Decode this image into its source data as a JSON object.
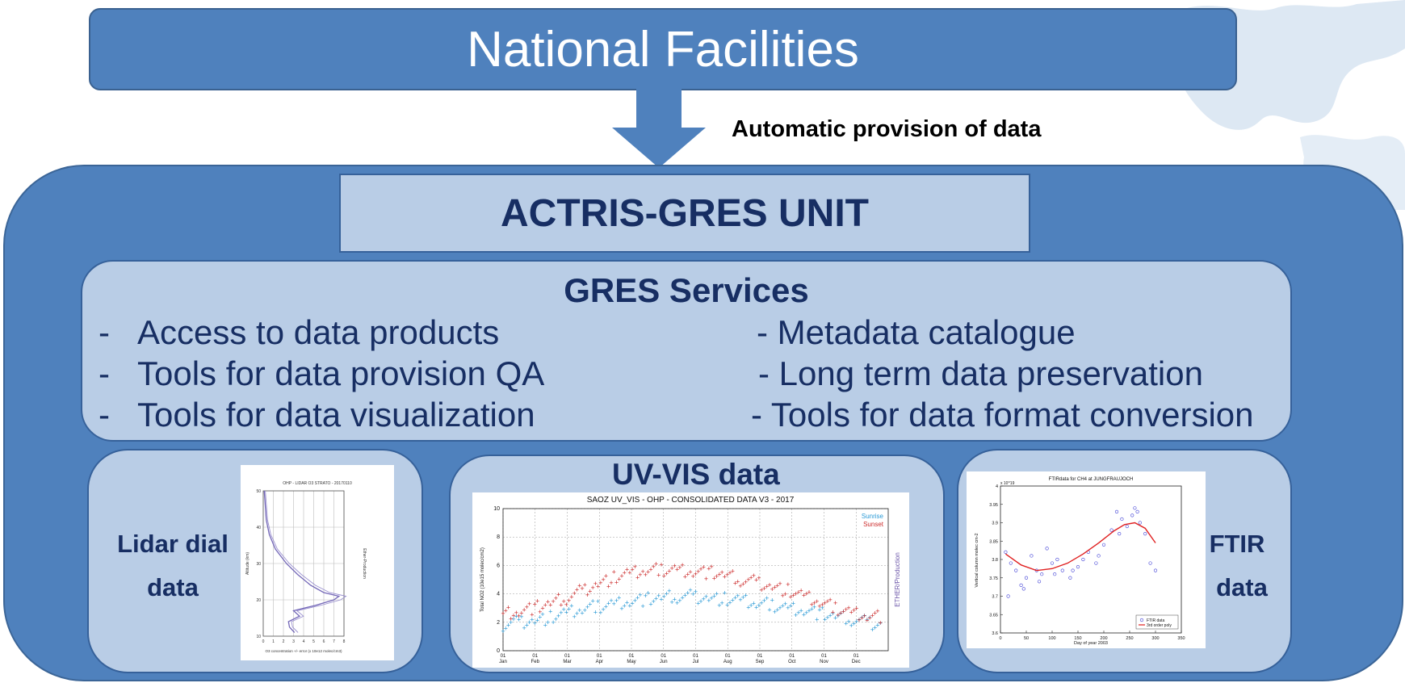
{
  "header": {
    "title": "National Facilities"
  },
  "flow": {
    "arrow_label": "Automatic provision of data"
  },
  "unit": {
    "title": "ACTRIS-GRES UNIT"
  },
  "services": {
    "title": "GRES Services",
    "left": [
      "Access to data products",
      "Tools for data provision QA",
      "Tools for data visualization"
    ],
    "right": [
      "- Metadata catalogue",
      "- Long term data preservation",
      "- Tools for data format conversion"
    ]
  },
  "panels": {
    "lidar": {
      "label_line1": "Lidar dial",
      "label_line2": "data"
    },
    "uvvis": {
      "title": "UV-VIS data"
    },
    "ftir": {
      "label_line1": "FTIR",
      "label_line2": "data"
    }
  },
  "colors": {
    "primary_blue": "#4f81bd",
    "light_blue": "#b9cde6",
    "dark_navy": "#172e63",
    "sunrise": "#2a9ad6",
    "sunset": "#cc2b2b"
  },
  "chart_data": [
    {
      "type": "line",
      "title": "OHP - LIDAR O3 STRATO - 20170110",
      "xlabel": "O3 concentration +/- error (x 10e12 molec/cm3)",
      "ylabel": "Altitude (km)",
      "side_label": "Ether-Production",
      "xlim": [
        0,
        8
      ],
      "ylim": [
        10,
        50
      ],
      "x_ticks": [
        "0",
        "1",
        "2",
        "3",
        "4",
        "5",
        "6",
        "7",
        "8"
      ],
      "y_ticks": [
        "10",
        "20",
        "30",
        "40",
        "50"
      ],
      "series": [
        {
          "x": [
            0.1,
            0.2,
            0.3,
            0.6,
            1.2,
            2.3,
            3.4,
            4.7,
            6.0,
            7.5,
            7.0,
            5.2,
            3.0,
            3.6,
            2.5,
            2.6,
            3.1
          ],
          "y": [
            50,
            46,
            42,
            38,
            34,
            30,
            27,
            24,
            22,
            21,
            20,
            18.5,
            17,
            15.5,
            14,
            12.5,
            11
          ]
        }
      ]
    },
    {
      "type": "scatter",
      "title": "SAOZ UV_VIS - OHP - CONSOLIDATED DATA V3 - 2017",
      "ylabel": "Total NO2 (10e15 molec/cm2)",
      "side_label": "ETHER/Production",
      "ylim": [
        0,
        10
      ],
      "y_ticks": [
        "0",
        "2",
        "4",
        "6",
        "8",
        "10"
      ],
      "x_ticks": [
        "01\nJan",
        "01\nFeb",
        "01\nMar",
        "01\nApr",
        "01\nMay",
        "01\nJun",
        "01\nJul",
        "01\nAug",
        "01\nSep",
        "01\nOct",
        "01\nNov",
        "01\nDec"
      ],
      "series": [
        {
          "name": "Sunrise",
          "color": "#2a9ad6",
          "x": [
            0,
            15,
            30,
            45,
            60,
            75,
            90,
            105,
            120,
            135,
            150,
            165,
            180,
            195,
            210,
            225,
            240,
            255,
            270,
            285,
            300,
            315,
            330,
            345,
            360
          ],
          "y": [
            1.8,
            2.0,
            2.1,
            2.3,
            2.6,
            2.9,
            3.1,
            3.3,
            3.5,
            3.6,
            3.7,
            3.8,
            3.8,
            3.7,
            3.6,
            3.5,
            3.3,
            3.2,
            3.0,
            2.9,
            2.6,
            2.4,
            2.2,
            2.0,
            1.8
          ]
        },
        {
          "name": "Sunset",
          "color": "#cc2b2b",
          "x": [
            0,
            15,
            30,
            45,
            60,
            75,
            90,
            105,
            120,
            135,
            150,
            165,
            180,
            195,
            210,
            225,
            240,
            255,
            270,
            285,
            300,
            315,
            330,
            345,
            360
          ],
          "y": [
            2.6,
            2.8,
            3.0,
            3.3,
            3.7,
            4.2,
            4.7,
            5.1,
            5.4,
            5.6,
            5.7,
            5.7,
            5.6,
            5.5,
            5.3,
            5.0,
            4.8,
            4.5,
            4.2,
            3.8,
            3.4,
            3.0,
            2.7,
            2.5,
            2.4
          ]
        }
      ]
    },
    {
      "type": "scatter",
      "title": "FTIRdata for CH4 at JUNGFRAUJOCH",
      "xlabel": "Day of year 2003",
      "ylabel": "Vertical column molec cm-2",
      "xlim": [
        0,
        350
      ],
      "ylim": [
        3.6,
        4.0
      ],
      "x_ticks": [
        "0",
        "50",
        "100",
        "150",
        "200",
        "250",
        "300",
        "350"
      ],
      "y_ticks": [
        "3.6",
        "3.65",
        "3.7",
        "3.75",
        "3.8",
        "3.85",
        "3.9",
        "3.95",
        "4"
      ],
      "exponent": "x 10^19",
      "series": [
        {
          "name": "FTIR data",
          "color": "#3f3fd6",
          "x": [
            10,
            20,
            30,
            40,
            50,
            60,
            70,
            80,
            90,
            100,
            110,
            120,
            135,
            150,
            160,
            170,
            185,
            200,
            215,
            225,
            235,
            245,
            255,
            260,
            270,
            280,
            290,
            300,
            15,
            45,
            75,
            105,
            140,
            190,
            230,
            265
          ],
          "y": [
            3.82,
            3.79,
            3.77,
            3.73,
            3.75,
            3.81,
            3.77,
            3.76,
            3.83,
            3.79,
            3.8,
            3.77,
            3.75,
            3.78,
            3.8,
            3.82,
            3.79,
            3.84,
            3.88,
            3.93,
            3.91,
            3.89,
            3.92,
            3.94,
            3.9,
            3.87,
            3.79,
            3.77,
            3.7,
            3.72,
            3.74,
            3.76,
            3.77,
            3.81,
            3.87,
            3.93
          ]
        },
        {
          "name": "3rd order poly",
          "color": "#e02020",
          "x": [
            10,
            40,
            70,
            100,
            130,
            160,
            190,
            220,
            240,
            260,
            280,
            300
          ],
          "y": [
            3.815,
            3.785,
            3.77,
            3.775,
            3.79,
            3.815,
            3.845,
            3.878,
            3.895,
            3.9,
            3.885,
            3.845
          ]
        }
      ]
    }
  ]
}
